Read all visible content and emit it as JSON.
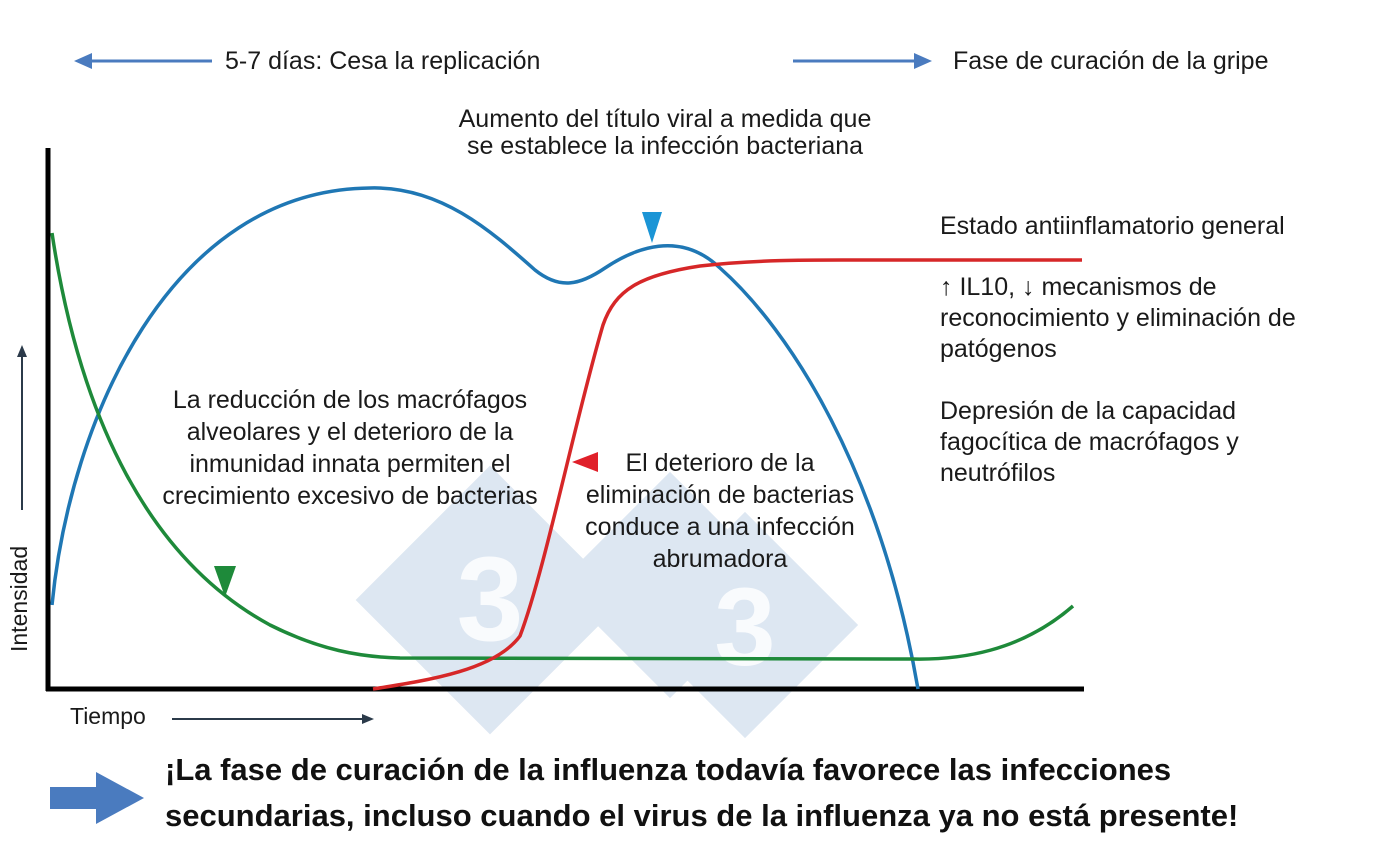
{
  "header": {
    "left_label": "5-7 días: Cesa la replicación",
    "right_label": "Fase de curación de la gripe"
  },
  "annotations": {
    "viral_titer": "Aumento del título viral a medida que se establece la infección bacteriana",
    "macrophage_reduction": "La reducción de los macrófagos alveolares y el deterioro de la inmunidad innata permiten el crecimiento excesivo de bacterias",
    "clearance_deterioration": "El deterioro de la eliminación de bacterias conduce a una infección abrumadora",
    "anti_inflammatory": "Estado antiinflamatorio general",
    "il10": "↑ IL10, ↓ mecanismos de reconocimiento y eliminación de patógenos",
    "phagocytic": "Depresión de la capacidad fagocítica de macrófagos y neutrófilos"
  },
  "axes": {
    "y_label": "Intensidad",
    "x_label": "Tiempo"
  },
  "footer": {
    "message_line1": "¡La fase de curación de la influenza todavía favorece las infecciones",
    "message_line2": "secundarias, incluso cuando el virus de la influenza ya no está presente!"
  },
  "colors": {
    "blue_curve": "#1f77b4",
    "red_curve": "#d62728",
    "green_curve": "#1e8a3a",
    "arrow_blue": "#4a7bbf",
    "marker_blue": "#1b95d6",
    "marker_red": "#e0202a",
    "marker_green": "#1e8a3a",
    "watermark": "#dbe6f2"
  },
  "icons": {
    "header_left_arrow": "arrow-left-icon",
    "header_right_arrow": "arrow-right-icon",
    "footer_arrow": "arrow-right-bold-icon",
    "watermark": "logo-333-watermark"
  }
}
